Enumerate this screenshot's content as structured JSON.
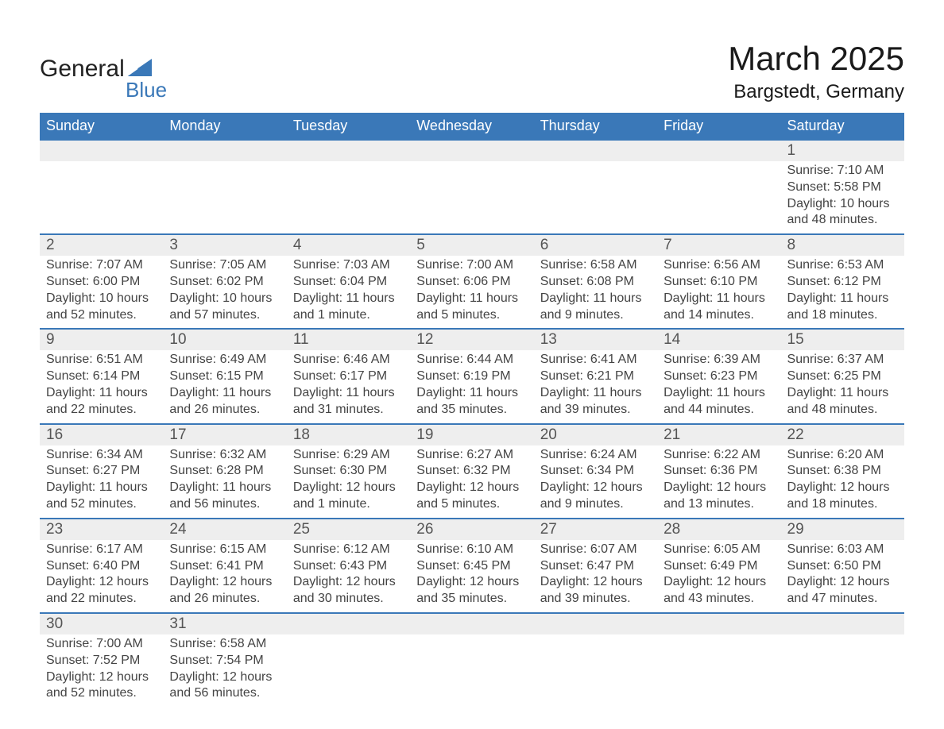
{
  "logo": {
    "text1": "General",
    "text2": "Blue",
    "triangle_color": "#3a78b8"
  },
  "title": "March 2025",
  "location": "Bargstedt, Germany",
  "colors": {
    "header_bg": "#3a78b8",
    "header_text": "#ffffff",
    "daynum_bg": "#eeeeee",
    "row_border": "#3a78b8",
    "body_text": "#444444",
    "page_bg": "#ffffff"
  },
  "typography": {
    "title_fontsize": 42,
    "location_fontsize": 24,
    "dayheader_fontsize": 18,
    "daynum_fontsize": 19,
    "detail_fontsize": 16
  },
  "day_headers": [
    "Sunday",
    "Monday",
    "Tuesday",
    "Wednesday",
    "Thursday",
    "Friday",
    "Saturday"
  ],
  "weeks": [
    [
      null,
      null,
      null,
      null,
      null,
      null,
      {
        "n": "1",
        "sunrise": "Sunrise: 7:10 AM",
        "sunset": "Sunset: 5:58 PM",
        "daylight": "Daylight: 10 hours and 48 minutes."
      }
    ],
    [
      {
        "n": "2",
        "sunrise": "Sunrise: 7:07 AM",
        "sunset": "Sunset: 6:00 PM",
        "daylight": "Daylight: 10 hours and 52 minutes."
      },
      {
        "n": "3",
        "sunrise": "Sunrise: 7:05 AM",
        "sunset": "Sunset: 6:02 PM",
        "daylight": "Daylight: 10 hours and 57 minutes."
      },
      {
        "n": "4",
        "sunrise": "Sunrise: 7:03 AM",
        "sunset": "Sunset: 6:04 PM",
        "daylight": "Daylight: 11 hours and 1 minute."
      },
      {
        "n": "5",
        "sunrise": "Sunrise: 7:00 AM",
        "sunset": "Sunset: 6:06 PM",
        "daylight": "Daylight: 11 hours and 5 minutes."
      },
      {
        "n": "6",
        "sunrise": "Sunrise: 6:58 AM",
        "sunset": "Sunset: 6:08 PM",
        "daylight": "Daylight: 11 hours and 9 minutes."
      },
      {
        "n": "7",
        "sunrise": "Sunrise: 6:56 AM",
        "sunset": "Sunset: 6:10 PM",
        "daylight": "Daylight: 11 hours and 14 minutes."
      },
      {
        "n": "8",
        "sunrise": "Sunrise: 6:53 AM",
        "sunset": "Sunset: 6:12 PM",
        "daylight": "Daylight: 11 hours and 18 minutes."
      }
    ],
    [
      {
        "n": "9",
        "sunrise": "Sunrise: 6:51 AM",
        "sunset": "Sunset: 6:14 PM",
        "daylight": "Daylight: 11 hours and 22 minutes."
      },
      {
        "n": "10",
        "sunrise": "Sunrise: 6:49 AM",
        "sunset": "Sunset: 6:15 PM",
        "daylight": "Daylight: 11 hours and 26 minutes."
      },
      {
        "n": "11",
        "sunrise": "Sunrise: 6:46 AM",
        "sunset": "Sunset: 6:17 PM",
        "daylight": "Daylight: 11 hours and 31 minutes."
      },
      {
        "n": "12",
        "sunrise": "Sunrise: 6:44 AM",
        "sunset": "Sunset: 6:19 PM",
        "daylight": "Daylight: 11 hours and 35 minutes."
      },
      {
        "n": "13",
        "sunrise": "Sunrise: 6:41 AM",
        "sunset": "Sunset: 6:21 PM",
        "daylight": "Daylight: 11 hours and 39 minutes."
      },
      {
        "n": "14",
        "sunrise": "Sunrise: 6:39 AM",
        "sunset": "Sunset: 6:23 PM",
        "daylight": "Daylight: 11 hours and 44 minutes."
      },
      {
        "n": "15",
        "sunrise": "Sunrise: 6:37 AM",
        "sunset": "Sunset: 6:25 PM",
        "daylight": "Daylight: 11 hours and 48 minutes."
      }
    ],
    [
      {
        "n": "16",
        "sunrise": "Sunrise: 6:34 AM",
        "sunset": "Sunset: 6:27 PM",
        "daylight": "Daylight: 11 hours and 52 minutes."
      },
      {
        "n": "17",
        "sunrise": "Sunrise: 6:32 AM",
        "sunset": "Sunset: 6:28 PM",
        "daylight": "Daylight: 11 hours and 56 minutes."
      },
      {
        "n": "18",
        "sunrise": "Sunrise: 6:29 AM",
        "sunset": "Sunset: 6:30 PM",
        "daylight": "Daylight: 12 hours and 1 minute."
      },
      {
        "n": "19",
        "sunrise": "Sunrise: 6:27 AM",
        "sunset": "Sunset: 6:32 PM",
        "daylight": "Daylight: 12 hours and 5 minutes."
      },
      {
        "n": "20",
        "sunrise": "Sunrise: 6:24 AM",
        "sunset": "Sunset: 6:34 PM",
        "daylight": "Daylight: 12 hours and 9 minutes."
      },
      {
        "n": "21",
        "sunrise": "Sunrise: 6:22 AM",
        "sunset": "Sunset: 6:36 PM",
        "daylight": "Daylight: 12 hours and 13 minutes."
      },
      {
        "n": "22",
        "sunrise": "Sunrise: 6:20 AM",
        "sunset": "Sunset: 6:38 PM",
        "daylight": "Daylight: 12 hours and 18 minutes."
      }
    ],
    [
      {
        "n": "23",
        "sunrise": "Sunrise: 6:17 AM",
        "sunset": "Sunset: 6:40 PM",
        "daylight": "Daylight: 12 hours and 22 minutes."
      },
      {
        "n": "24",
        "sunrise": "Sunrise: 6:15 AM",
        "sunset": "Sunset: 6:41 PM",
        "daylight": "Daylight: 12 hours and 26 minutes."
      },
      {
        "n": "25",
        "sunrise": "Sunrise: 6:12 AM",
        "sunset": "Sunset: 6:43 PM",
        "daylight": "Daylight: 12 hours and 30 minutes."
      },
      {
        "n": "26",
        "sunrise": "Sunrise: 6:10 AM",
        "sunset": "Sunset: 6:45 PM",
        "daylight": "Daylight: 12 hours and 35 minutes."
      },
      {
        "n": "27",
        "sunrise": "Sunrise: 6:07 AM",
        "sunset": "Sunset: 6:47 PM",
        "daylight": "Daylight: 12 hours and 39 minutes."
      },
      {
        "n": "28",
        "sunrise": "Sunrise: 6:05 AM",
        "sunset": "Sunset: 6:49 PM",
        "daylight": "Daylight: 12 hours and 43 minutes."
      },
      {
        "n": "29",
        "sunrise": "Sunrise: 6:03 AM",
        "sunset": "Sunset: 6:50 PM",
        "daylight": "Daylight: 12 hours and 47 minutes."
      }
    ],
    [
      {
        "n": "30",
        "sunrise": "Sunrise: 7:00 AM",
        "sunset": "Sunset: 7:52 PM",
        "daylight": "Daylight: 12 hours and 52 minutes."
      },
      {
        "n": "31",
        "sunrise": "Sunrise: 6:58 AM",
        "sunset": "Sunset: 7:54 PM",
        "daylight": "Daylight: 12 hours and 56 minutes."
      },
      null,
      null,
      null,
      null,
      null
    ]
  ]
}
